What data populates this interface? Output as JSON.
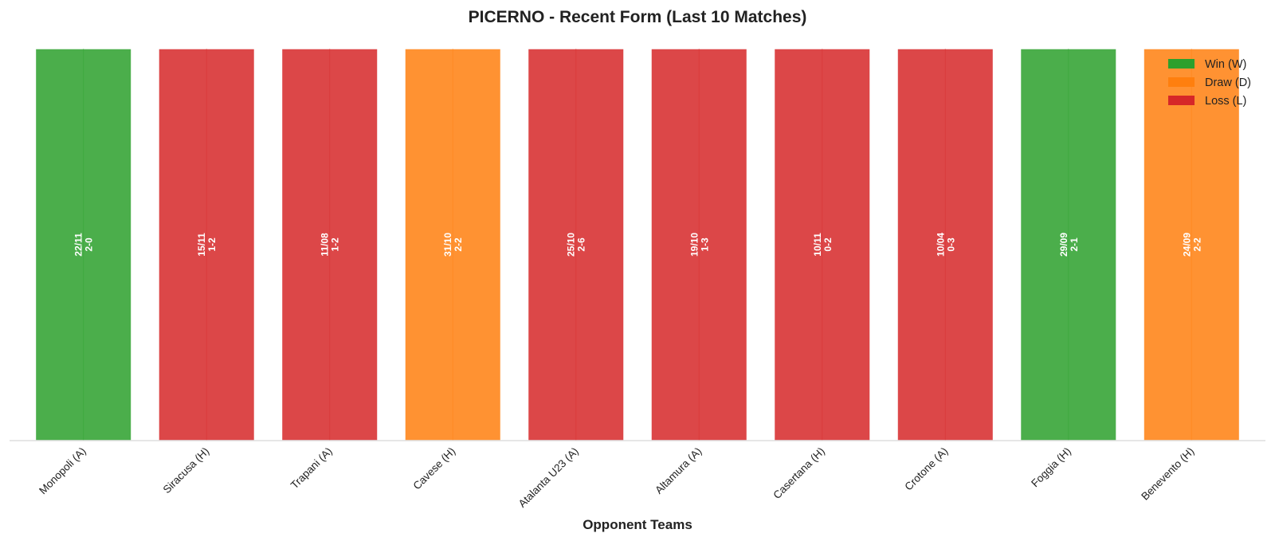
{
  "colors": {
    "W": "#2ca02c",
    "D": "#ff7f0e",
    "L": "#d62728"
  },
  "chart_data": {
    "type": "bar",
    "title": "PICERNO - Recent Form (Last 10 Matches)",
    "xlabel": "Opponent Teams",
    "ylabel": "",
    "ylim": [
      0,
      1
    ],
    "grid": false,
    "legend_position": "top-right",
    "categories": [
      "Monopoli (A)",
      "Siracusa (H)",
      "Trapani (A)",
      "Cavese (H)",
      "Atalanta U23 (A)",
      "Altamura (A)",
      "Casertana (H)",
      "Crotone (A)",
      "Foggia (H)",
      "Benevento (H)"
    ],
    "values": [
      1,
      1,
      1,
      1,
      1,
      1,
      1,
      1,
      1,
      1
    ],
    "results": [
      "W",
      "L",
      "L",
      "D",
      "L",
      "L",
      "L",
      "L",
      "W",
      "D"
    ],
    "dates": [
      "22/11",
      "15/11",
      "11/08",
      "31/10",
      "25/10",
      "19/10",
      "10/11",
      "10/04",
      "29/09",
      "24/09"
    ],
    "scores": [
      "2-0",
      "1-2",
      "1-2",
      "2-2",
      "2-6",
      "1-3",
      "0-2",
      "0-3",
      "2-1",
      "2-2"
    ],
    "legend": [
      {
        "key": "W",
        "label": "Win (W)"
      },
      {
        "key": "D",
        "label": "Draw (D)"
      },
      {
        "key": "L",
        "label": "Loss (L)"
      }
    ]
  }
}
